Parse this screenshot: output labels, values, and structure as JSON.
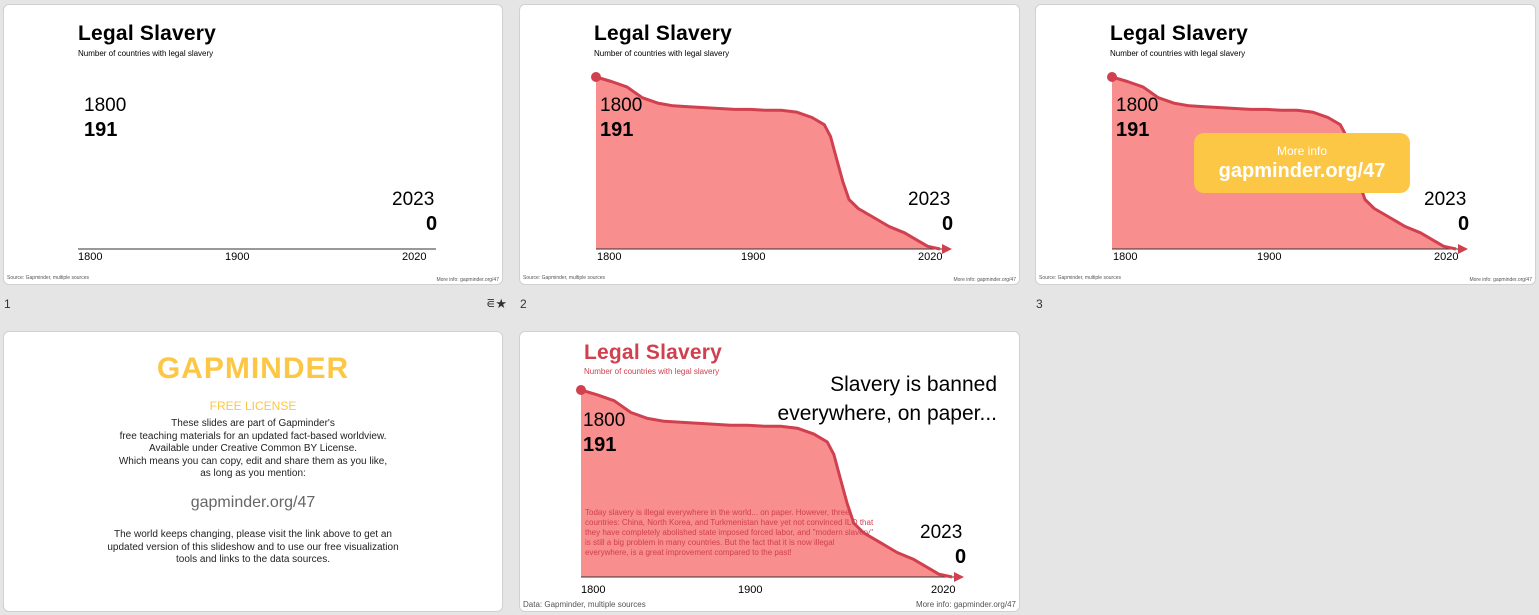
{
  "slides": [
    {
      "number": "1",
      "title": "Legal Slavery",
      "subtitle": "Number of countries with legal slavery",
      "start_year": "1800",
      "start_value": "191",
      "end_year": "2023",
      "end_value": "0",
      "ticks": [
        "1800",
        "1900",
        "2020"
      ],
      "source": "Source: Gapminder, multiple sources",
      "more_info": "More info: gapminder.org/47"
    },
    {
      "number": "2",
      "title": "Legal Slavery",
      "subtitle": "Number of countries with legal slavery",
      "start_year": "1800",
      "start_value": "191",
      "end_year": "2023",
      "end_value": "0",
      "ticks": [
        "1800",
        "1900",
        "2020"
      ],
      "source": "Source: Gapminder, multiple sources",
      "more_info": "More info: gapminder.org/47"
    },
    {
      "number": "3",
      "title": "Legal Slavery",
      "subtitle": "Number of countries with legal slavery",
      "start_year": "1800",
      "start_value": "191",
      "end_year": "2023",
      "end_value": "0",
      "ticks": [
        "1800",
        "1900",
        "2020"
      ],
      "source": "Source: Gapminder, multiple sources",
      "more_info": "More info: gapminder.org/47",
      "badge_small": "More info",
      "badge_big": "gapminder.org/47"
    },
    {
      "logo": "GAPMINDER",
      "license_title": "FREE LICENSE",
      "lines1": [
        "These slides are part of Gapminder's",
        "free teaching materials for an updated fact-based worldview.",
        "Available under Creative Common BY License.",
        "Which means you can copy, edit and share them as you like,",
        "as long as you mention:"
      ],
      "link": "gapminder.org/47",
      "lines2": [
        "The world keeps changing, please visit the link above to get an",
        "updated version of this slideshow and to use our free visualization",
        "tools and links to the data sources."
      ]
    },
    {
      "title": "Legal Slavery",
      "subtitle": "Number of countries with legal slavery",
      "claim": [
        "Slavery is banned",
        "everywhere, on paper..."
      ],
      "paragraph": "Today slavery is illegal everywhere in the world... on paper. However, three countries: China, North Korea, and Turkmenistan have yet not convinced ILO that they have completely abolished state imposed forced labor, and \"modern slavery\" is still a big problem in many countries. But the fact that it is now illegal everywhere, is a great improvement compared to the past!",
      "start_year": "1800",
      "start_value": "191",
      "end_year": "2023",
      "end_value": "0",
      "ticks": [
        "1800",
        "1900",
        "2020"
      ],
      "source": "Data: Gapminder, multiple sources",
      "more_info": "More info: gapminder.org/47"
    }
  ],
  "chart_data": {
    "type": "area",
    "title": "Legal Slavery",
    "subtitle": "Number of countries with legal slavery",
    "x": [
      1800,
      1810,
      1820,
      1830,
      1840,
      1850,
      1860,
      1870,
      1880,
      1890,
      1900,
      1910,
      1920,
      1930,
      1940,
      1948,
      1952,
      1956,
      1960,
      1964,
      1970,
      1980,
      1990,
      2000,
      2010,
      2015,
      2023
    ],
    "values": [
      191,
      186,
      180,
      168,
      162,
      159,
      158,
      157,
      156,
      155,
      155,
      154,
      154,
      152,
      146,
      138,
      125,
      100,
      75,
      55,
      45,
      35,
      25,
      18,
      8,
      3,
      0
    ],
    "xlim": [
      1800,
      2023
    ],
    "ylim": [
      0,
      191
    ],
    "color": "#d0404f",
    "fill": "#f98e8e"
  },
  "colors": {
    "accent": "#d0404f",
    "area": "#f98e8e",
    "gapminder_yellow": "#fdc746"
  }
}
